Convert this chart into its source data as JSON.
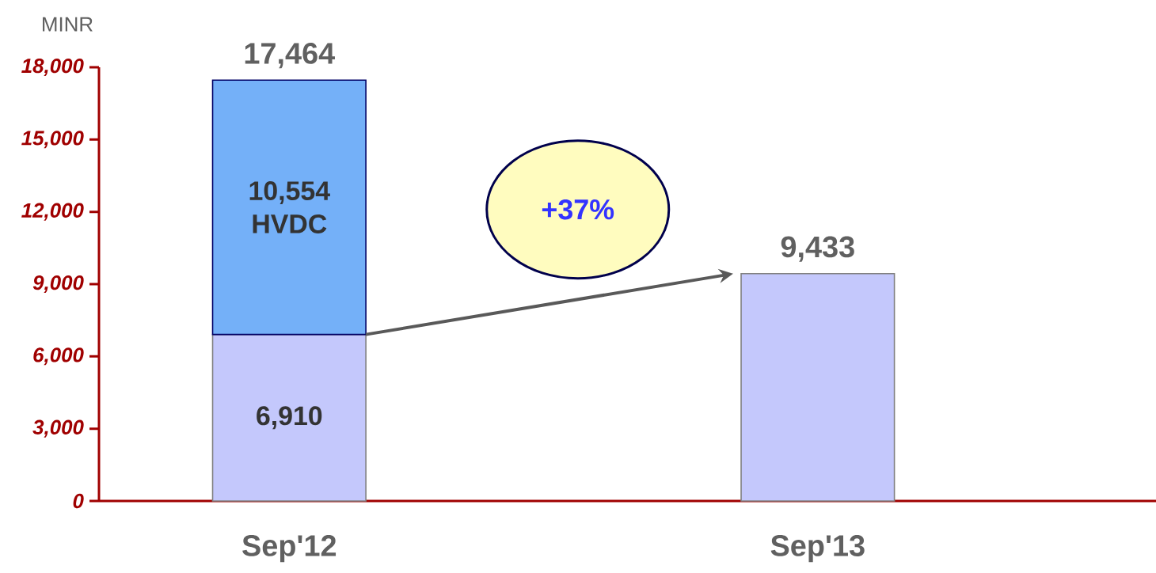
{
  "chart_data": {
    "type": "bar",
    "stacked": true,
    "ylabel": "MINR",
    "categories": [
      "Sep'12",
      "Sep'13"
    ],
    "series": [
      {
        "color": "#c4c8fc",
        "values": [
          6910,
          9433
        ],
        "value_labels": [
          "6,910",
          null
        ]
      },
      {
        "name": "HVDC",
        "color": "#74b0f8",
        "values": [
          10554,
          null
        ],
        "value_labels": [
          "10,554",
          null
        ]
      }
    ],
    "totals": [
      "17,464",
      "9,433"
    ],
    "ylim": [
      0,
      18000
    ],
    "yticks": [
      {
        "value": 0,
        "label": "0"
      },
      {
        "value": 3000,
        "label": "3,000"
      },
      {
        "value": 6000,
        "label": "6,000"
      },
      {
        "value": 9000,
        "label": "9,000"
      },
      {
        "value": 12000,
        "label": "12,000"
      },
      {
        "value": 15000,
        "label": "15,000"
      },
      {
        "value": 18000,
        "label": "18,000"
      }
    ],
    "annotations": [
      "+37%"
    ]
  }
}
